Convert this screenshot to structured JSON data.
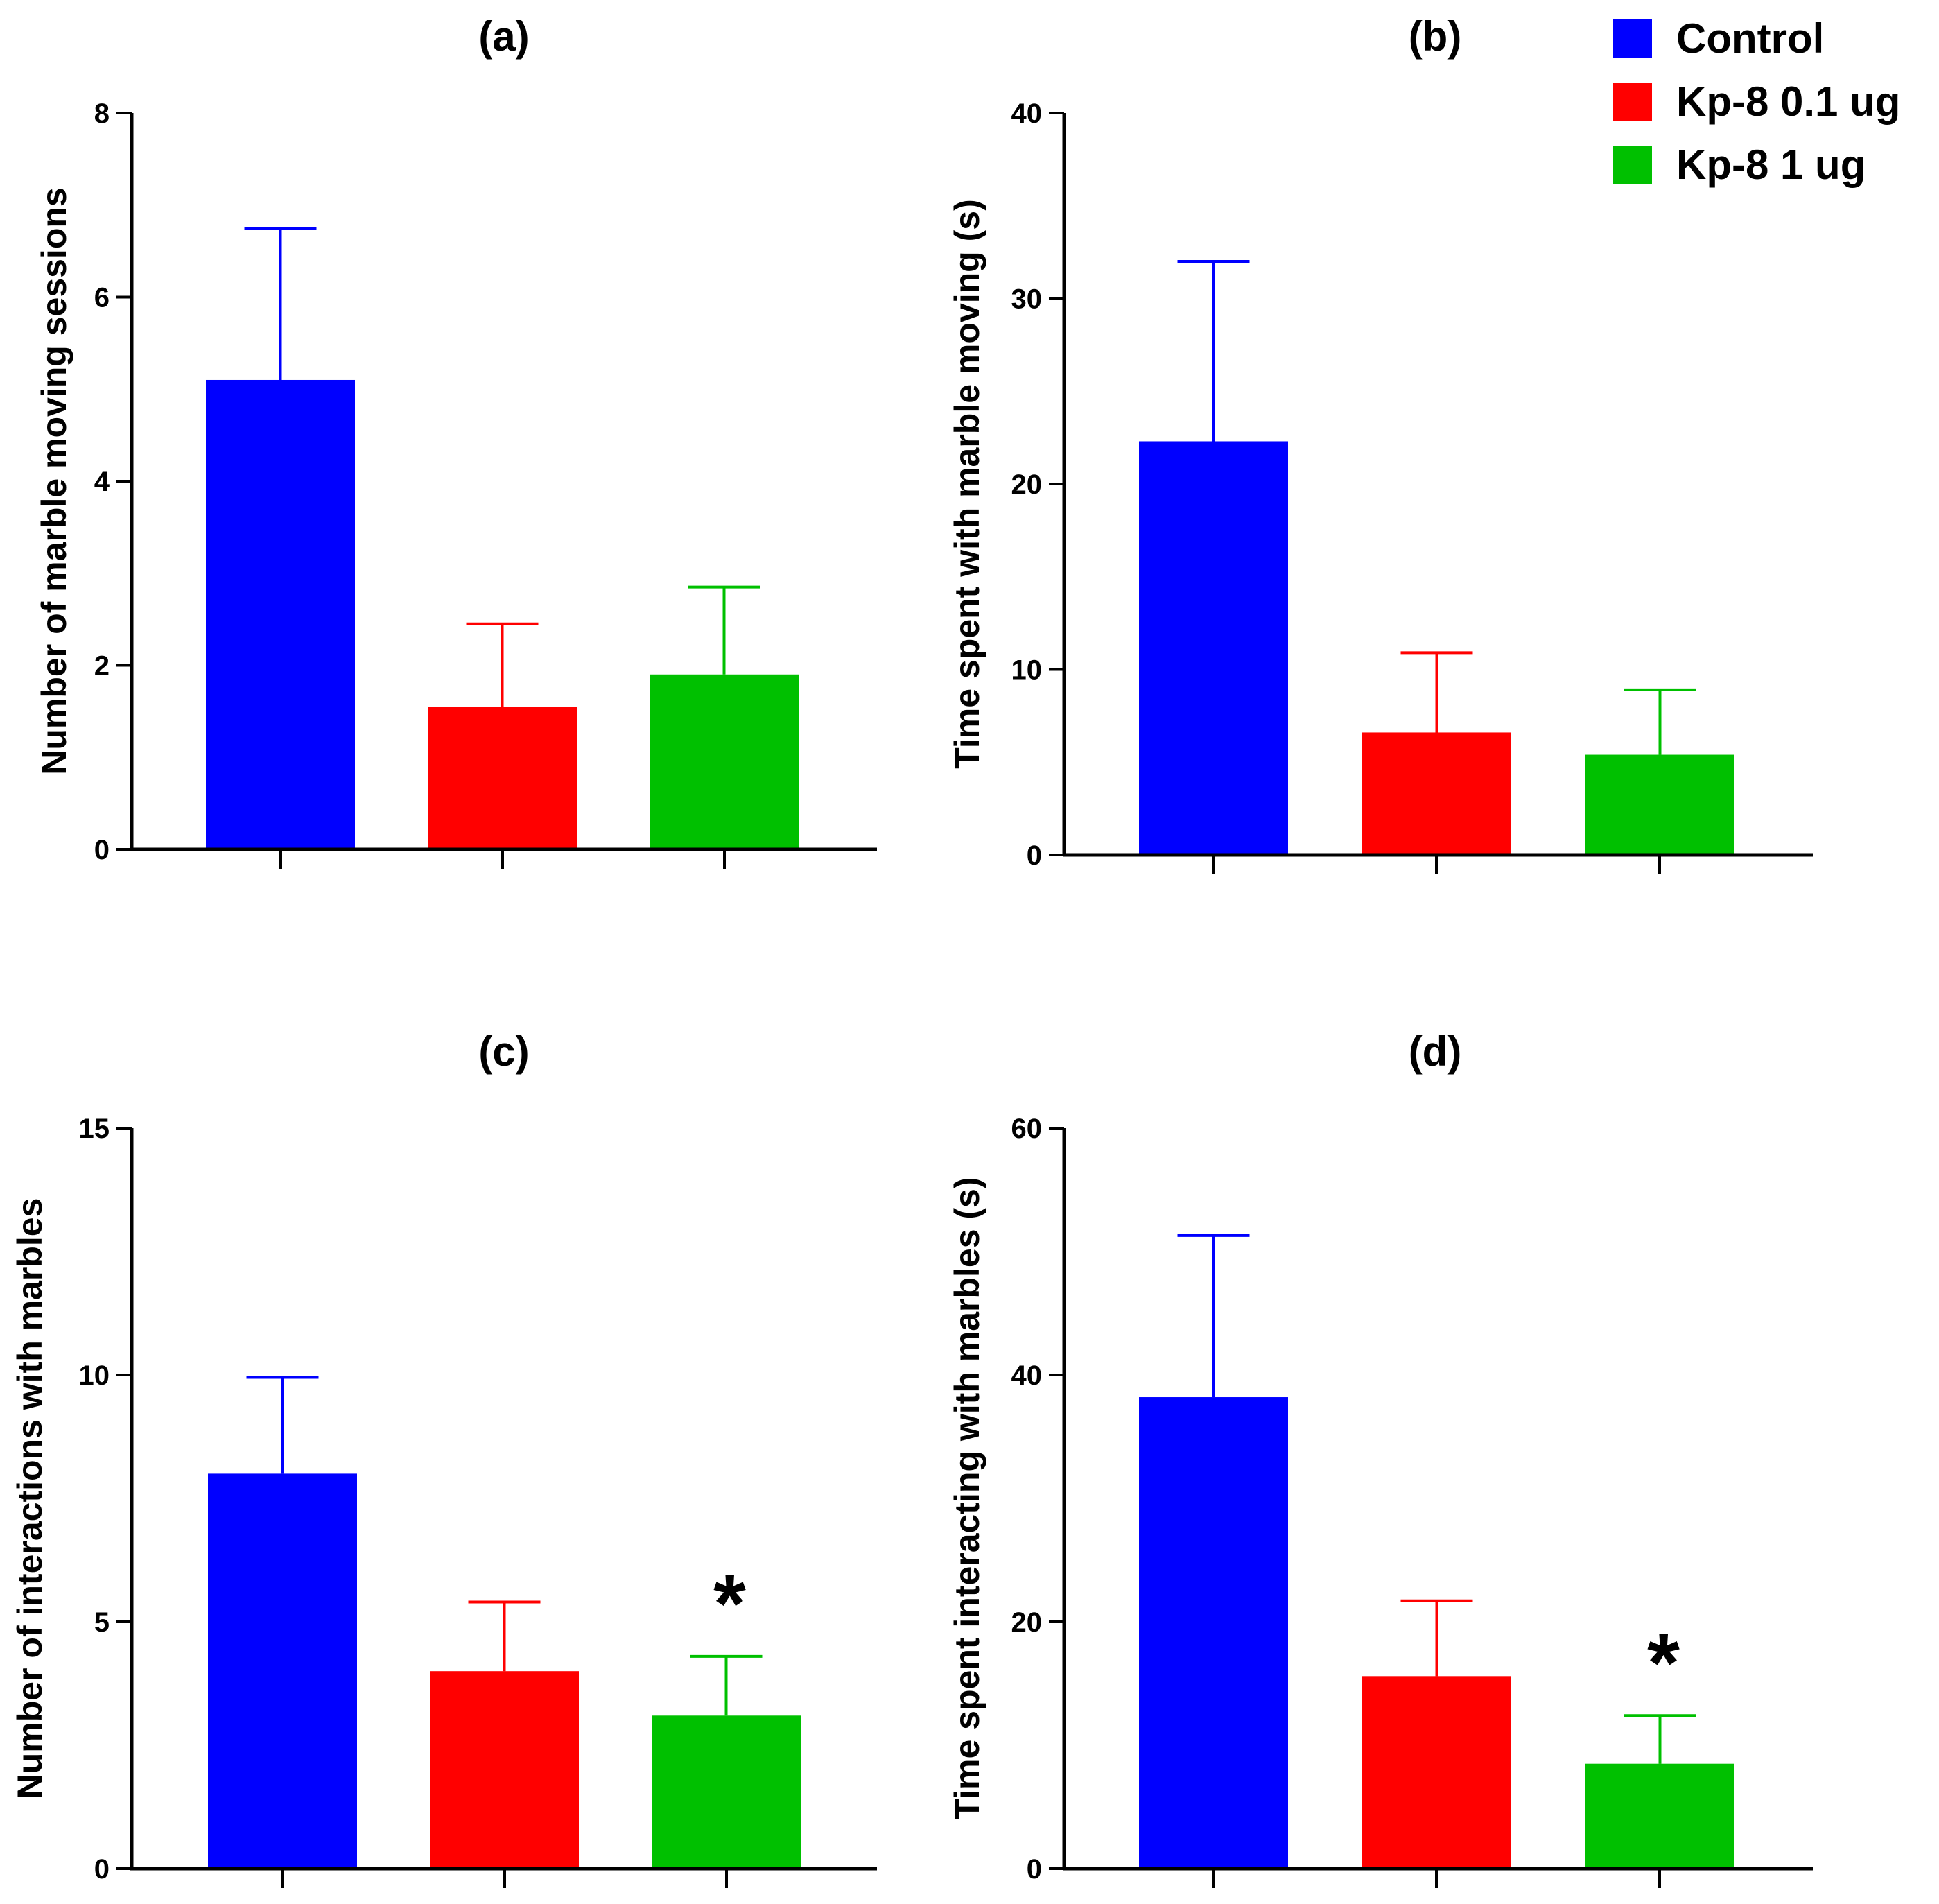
{
  "legend": [
    {
      "label": "Control",
      "color": "#0000ff"
    },
    {
      "label": "Kp-8 0.1 ug",
      "color": "#ff0000"
    },
    {
      "label": "Kp-8 1 ug",
      "color": "#00c000"
    }
  ],
  "chart_data": [
    {
      "type": "bar",
      "title": "(a)",
      "categories": [
        "Control",
        "Kp-8 0.1 ug",
        "Kp-8 1 ug"
      ],
      "values": [
        5.1,
        1.55,
        1.9
      ],
      "errors": [
        1.65,
        0.9,
        0.95
      ],
      "significance": [
        "",
        "",
        ""
      ],
      "xlabel": "",
      "ylabel": "Number of marble moving sessions",
      "ylim": [
        0,
        8
      ],
      "yticks": [
        0,
        2,
        4,
        6,
        8
      ],
      "ytick_labels": [
        "0",
        "2",
        "4",
        "6",
        "8"
      ],
      "grid": false
    },
    {
      "type": "bar",
      "title": "(b)",
      "categories": [
        "Control",
        "Kp-8 0.1 ug",
        "Kp-8 1 ug"
      ],
      "values": [
        22.3,
        6.6,
        5.4
      ],
      "errors": [
        9.7,
        4.3,
        3.5
      ],
      "significance": [
        "",
        "",
        ""
      ],
      "xlabel": "",
      "ylabel": "Time spent with marble moving (s)",
      "ylim": [
        0,
        40
      ],
      "yticks": [
        0,
        10,
        20,
        30,
        40
      ],
      "ytick_labels": [
        "0",
        "10",
        "20",
        "30",
        "40"
      ],
      "grid": false
    },
    {
      "type": "bar",
      "title": "(c)",
      "categories": [
        "Control",
        "Kp-8 0.1 ug",
        "Kp-8 1 ug"
      ],
      "values": [
        8.0,
        4.0,
        3.1
      ],
      "errors": [
        1.95,
        1.4,
        1.2
      ],
      "significance": [
        "",
        "",
        "*"
      ],
      "xlabel": "",
      "ylabel": "Number of interactions with marbles",
      "ylim": [
        0,
        15
      ],
      "yticks": [
        0,
        5,
        10,
        15
      ],
      "ytick_labels": [
        "0",
        "5",
        "10",
        "15"
      ],
      "grid": false
    },
    {
      "type": "bar",
      "title": "(d)",
      "categories": [
        "Control",
        "Kp-8 0.1 ug",
        "Kp-8 1 ug"
      ],
      "values": [
        38.2,
        15.6,
        8.5
      ],
      "errors": [
        13.1,
        6.1,
        3.9
      ],
      "significance": [
        "",
        "",
        "*"
      ],
      "xlabel": "",
      "ylabel": "Time spent interacting with marbles (s)",
      "ylim": [
        0,
        60
      ],
      "yticks": [
        0,
        20,
        40,
        60
      ],
      "ytick_labels": [
        "0",
        "20",
        "40",
        "60"
      ],
      "grid": false
    }
  ]
}
